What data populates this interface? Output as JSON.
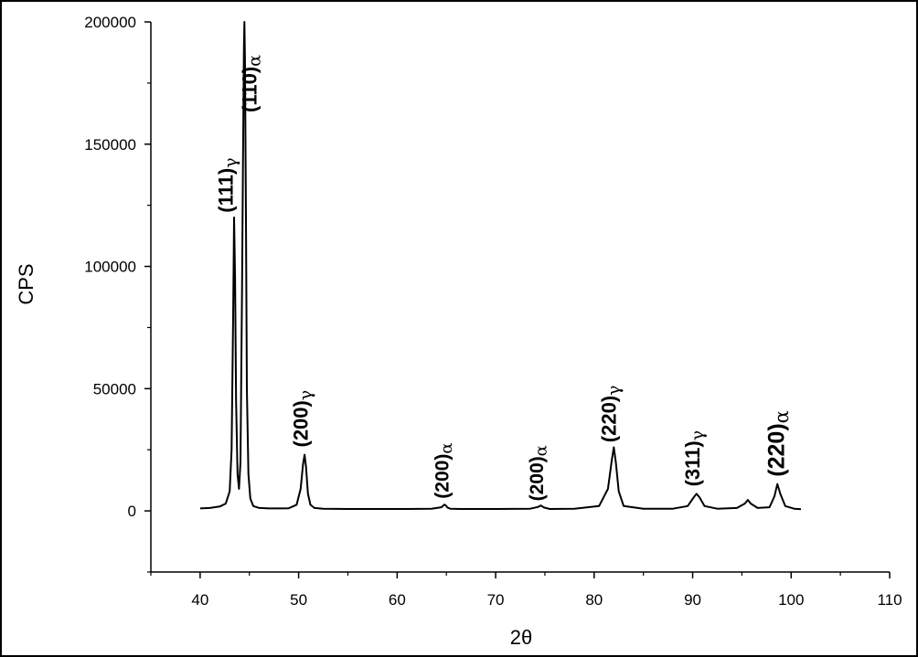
{
  "chart_data": {
    "type": "line",
    "xlabel": "2θ",
    "ylabel": "CPS",
    "xlim": [
      35,
      110
    ],
    "ylim": [
      -25000,
      200000
    ],
    "x_ticks": [
      40,
      50,
      60,
      70,
      80,
      90,
      100,
      110
    ],
    "y_ticks": [
      0,
      50000,
      100000,
      150000,
      200000
    ],
    "grid": false,
    "series": [
      {
        "x": [
          40.0,
          41.0,
          42.0,
          42.6,
          43.0,
          43.2,
          43.35,
          43.45,
          43.55,
          43.65,
          43.8,
          43.95,
          44.1,
          44.25,
          44.35,
          44.45,
          44.5,
          44.55,
          44.65,
          44.75,
          44.9,
          45.1,
          45.4,
          46.0,
          47.0,
          48.0,
          49.0,
          49.8,
          50.2,
          50.45,
          50.6,
          50.75,
          50.95,
          51.2,
          51.6,
          52.5,
          55.0,
          58.0,
          61.0,
          63.5,
          64.5,
          64.8,
          64.95,
          65.1,
          65.4,
          66.5,
          70.0,
          73.5,
          74.3,
          74.6,
          74.9,
          75.5,
          78.0,
          80.5,
          81.4,
          81.8,
          82.0,
          82.2,
          82.5,
          83.0,
          85.0,
          88.0,
          89.5,
          90.1,
          90.4,
          90.7,
          91.2,
          92.5,
          94.5,
          95.3,
          95.6,
          95.9,
          96.6,
          97.8,
          98.3,
          98.6,
          98.9,
          99.4,
          100.3,
          101.0
        ],
        "values": [
          1000,
          1200,
          1800,
          3000,
          8000,
          25000,
          80000,
          120000,
          95000,
          45000,
          15000,
          9000,
          20000,
          90000,
          140000,
          190000,
          200000,
          185000,
          120000,
          50000,
          15000,
          5000,
          2000,
          1200,
          1000,
          1000,
          1100,
          2500,
          9000,
          19000,
          23000,
          18000,
          7000,
          2500,
          1200,
          900,
          800,
          800,
          800,
          900,
          1500,
          2600,
          2200,
          1400,
          900,
          800,
          800,
          900,
          1600,
          2200,
          1400,
          800,
          900,
          2000,
          9000,
          21000,
          26000,
          20000,
          8000,
          2000,
          900,
          900,
          2000,
          5500,
          7000,
          5500,
          2000,
          900,
          1200,
          3000,
          4500,
          3000,
          1200,
          1500,
          6000,
          11000,
          7000,
          2000,
          900,
          700
        ]
      }
    ],
    "annotations": [
      {
        "text": "(111)",
        "sub": "γ",
        "x": 43.3,
        "y": 122000,
        "size": 22
      },
      {
        "text": "(110)",
        "sub": "α",
        "x": 45.7,
        "y": 163000,
        "size": 22
      },
      {
        "text": "(200)",
        "sub": "γ",
        "x": 50.9,
        "y": 26000,
        "size": 22
      },
      {
        "text": "(200)",
        "sub": "α",
        "x": 65.2,
        "y": 5000,
        "size": 21
      },
      {
        "text": "(200)",
        "sub": "α",
        "x": 74.8,
        "y": 4000,
        "size": 21
      },
      {
        "text": "(220)",
        "sub": "γ",
        "x": 82.2,
        "y": 28000,
        "size": 22
      },
      {
        "text": "(311)",
        "sub": "γ",
        "x": 90.7,
        "y": 10000,
        "size": 22
      },
      {
        "text": "(220)",
        "sub": "α",
        "x": 99.3,
        "y": 14000,
        "size": 25
      }
    ]
  }
}
